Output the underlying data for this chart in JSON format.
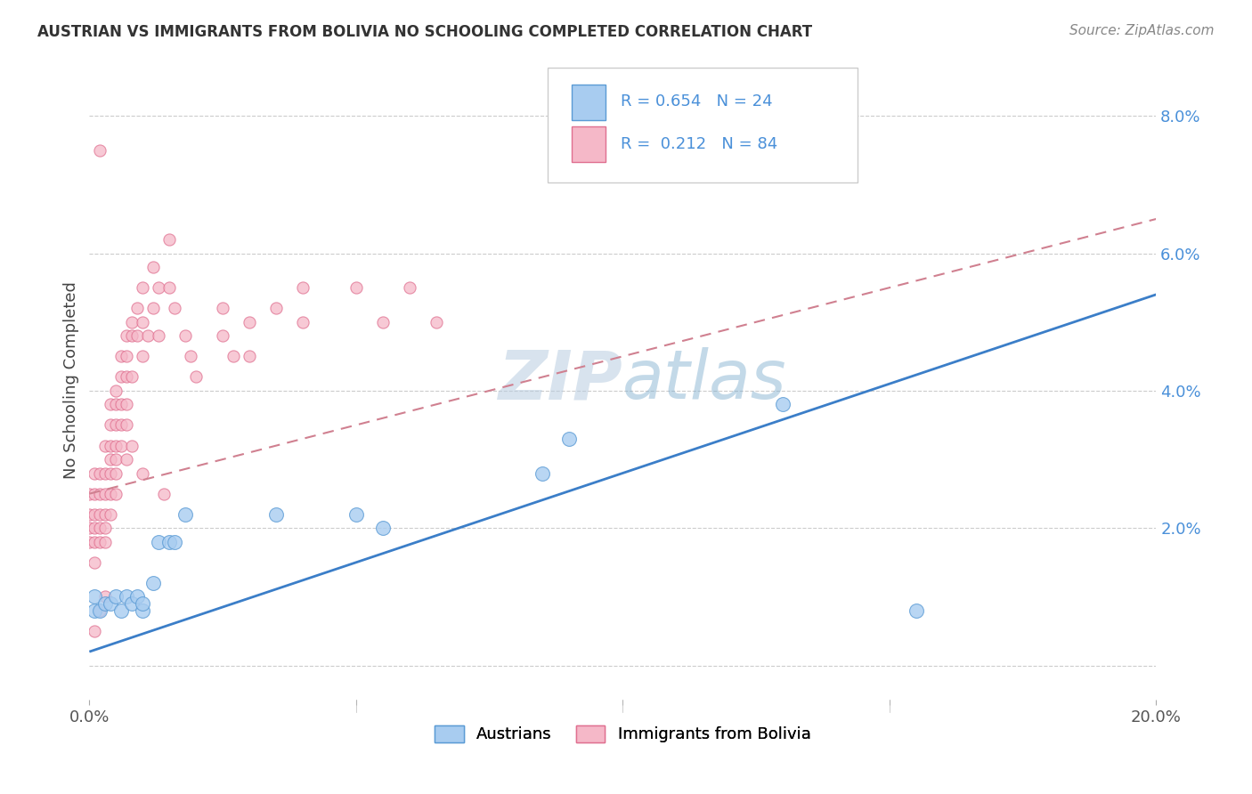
{
  "title": "AUSTRIAN VS IMMIGRANTS FROM BOLIVIA NO SCHOOLING COMPLETED CORRELATION CHART",
  "source": "Source: ZipAtlas.com",
  "ylabel": "No Schooling Completed",
  "xlim": [
    0.0,
    0.2
  ],
  "ylim": [
    -0.005,
    0.088
  ],
  "legend_labels": [
    "Austrians",
    "Immigrants from Bolivia"
  ],
  "blue_fill": "#A8CCF0",
  "blue_edge": "#5B9BD5",
  "pink_fill": "#F5B8C8",
  "pink_edge": "#E07090",
  "blue_line": "#3B7EC8",
  "pink_line": "#D08090",
  "r_blue": 0.654,
  "n_blue": 24,
  "r_pink": 0.212,
  "n_pink": 84,
  "blue_scatter_x": [
    0.001,
    0.001,
    0.002,
    0.003,
    0.004,
    0.005,
    0.006,
    0.007,
    0.008,
    0.009,
    0.01,
    0.01,
    0.012,
    0.013,
    0.015,
    0.016,
    0.018,
    0.035,
    0.05,
    0.055,
    0.085,
    0.09,
    0.13,
    0.155
  ],
  "blue_scatter_y": [
    0.008,
    0.01,
    0.008,
    0.009,
    0.009,
    0.01,
    0.008,
    0.01,
    0.009,
    0.01,
    0.008,
    0.009,
    0.012,
    0.018,
    0.018,
    0.018,
    0.022,
    0.022,
    0.022,
    0.02,
    0.028,
    0.033,
    0.038,
    0.008
  ],
  "pink_scatter_x": [
    0.0,
    0.0,
    0.0,
    0.0,
    0.001,
    0.001,
    0.001,
    0.001,
    0.001,
    0.001,
    0.002,
    0.002,
    0.002,
    0.002,
    0.002,
    0.002,
    0.003,
    0.003,
    0.003,
    0.003,
    0.003,
    0.003,
    0.004,
    0.004,
    0.004,
    0.004,
    0.004,
    0.004,
    0.004,
    0.005,
    0.005,
    0.005,
    0.005,
    0.005,
    0.005,
    0.005,
    0.006,
    0.006,
    0.006,
    0.006,
    0.006,
    0.007,
    0.007,
    0.007,
    0.007,
    0.008,
    0.008,
    0.008,
    0.009,
    0.009,
    0.01,
    0.01,
    0.01,
    0.011,
    0.012,
    0.012,
    0.013,
    0.013,
    0.015,
    0.015,
    0.016,
    0.018,
    0.019,
    0.02,
    0.025,
    0.025,
    0.027,
    0.03,
    0.03,
    0.035,
    0.04,
    0.04,
    0.05,
    0.055,
    0.06,
    0.065,
    0.007,
    0.008,
    0.007,
    0.01,
    0.014,
    0.001,
    0.002,
    0.003
  ],
  "pink_scatter_y": [
    0.025,
    0.022,
    0.02,
    0.018,
    0.028,
    0.025,
    0.022,
    0.02,
    0.018,
    0.015,
    0.028,
    0.025,
    0.022,
    0.02,
    0.018,
    0.075,
    0.032,
    0.028,
    0.025,
    0.022,
    0.02,
    0.018,
    0.038,
    0.035,
    0.032,
    0.03,
    0.028,
    0.025,
    0.022,
    0.04,
    0.038,
    0.035,
    0.032,
    0.03,
    0.028,
    0.025,
    0.045,
    0.042,
    0.038,
    0.035,
    0.032,
    0.048,
    0.045,
    0.042,
    0.038,
    0.05,
    0.048,
    0.042,
    0.052,
    0.048,
    0.055,
    0.05,
    0.045,
    0.048,
    0.058,
    0.052,
    0.055,
    0.048,
    0.062,
    0.055,
    0.052,
    0.048,
    0.045,
    0.042,
    0.052,
    0.048,
    0.045,
    0.05,
    0.045,
    0.052,
    0.055,
    0.05,
    0.055,
    0.05,
    0.055,
    0.05,
    0.035,
    0.032,
    0.03,
    0.028,
    0.025,
    0.005,
    0.008,
    0.01
  ]
}
